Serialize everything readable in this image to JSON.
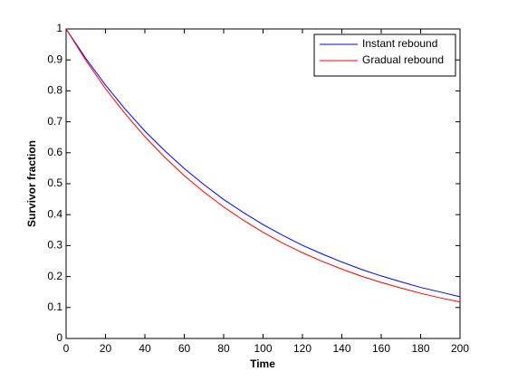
{
  "chart_data": {
    "type": "line",
    "xlabel": "Time",
    "ylabel": "Survivor fraction",
    "x": [
      0,
      10,
      20,
      30,
      40,
      50,
      60,
      70,
      80,
      90,
      100,
      110,
      120,
      130,
      140,
      150,
      160,
      170,
      180,
      190,
      200
    ],
    "series": [
      {
        "name": "Instant rebound",
        "color": "#0000ff",
        "values": [
          1,
          0.905,
          0.819,
          0.741,
          0.67,
          0.607,
          0.549,
          0.497,
          0.449,
          0.407,
          0.368,
          0.333,
          0.301,
          0.273,
          0.247,
          0.223,
          0.202,
          0.183,
          0.165,
          0.15,
          0.135
        ]
      },
      {
        "name": "Gradual rebound",
        "color": "#ff0000",
        "values": [
          1,
          0.899,
          0.807,
          0.726,
          0.652,
          0.586,
          0.526,
          0.473,
          0.425,
          0.382,
          0.343,
          0.308,
          0.277,
          0.249,
          0.224,
          0.201,
          0.181,
          0.163,
          0.146,
          0.131,
          0.118
        ]
      }
    ],
    "xlim": [
      0,
      200
    ],
    "xticks": [
      0,
      20,
      40,
      60,
      80,
      100,
      120,
      140,
      160,
      180,
      200
    ],
    "ylim": [
      0,
      1
    ],
    "yticks": [
      0,
      0.1,
      0.2,
      0.3,
      0.4,
      0.5,
      0.6,
      0.7,
      0.8,
      0.9,
      1
    ],
    "grid": false,
    "legend": "northeast"
  }
}
